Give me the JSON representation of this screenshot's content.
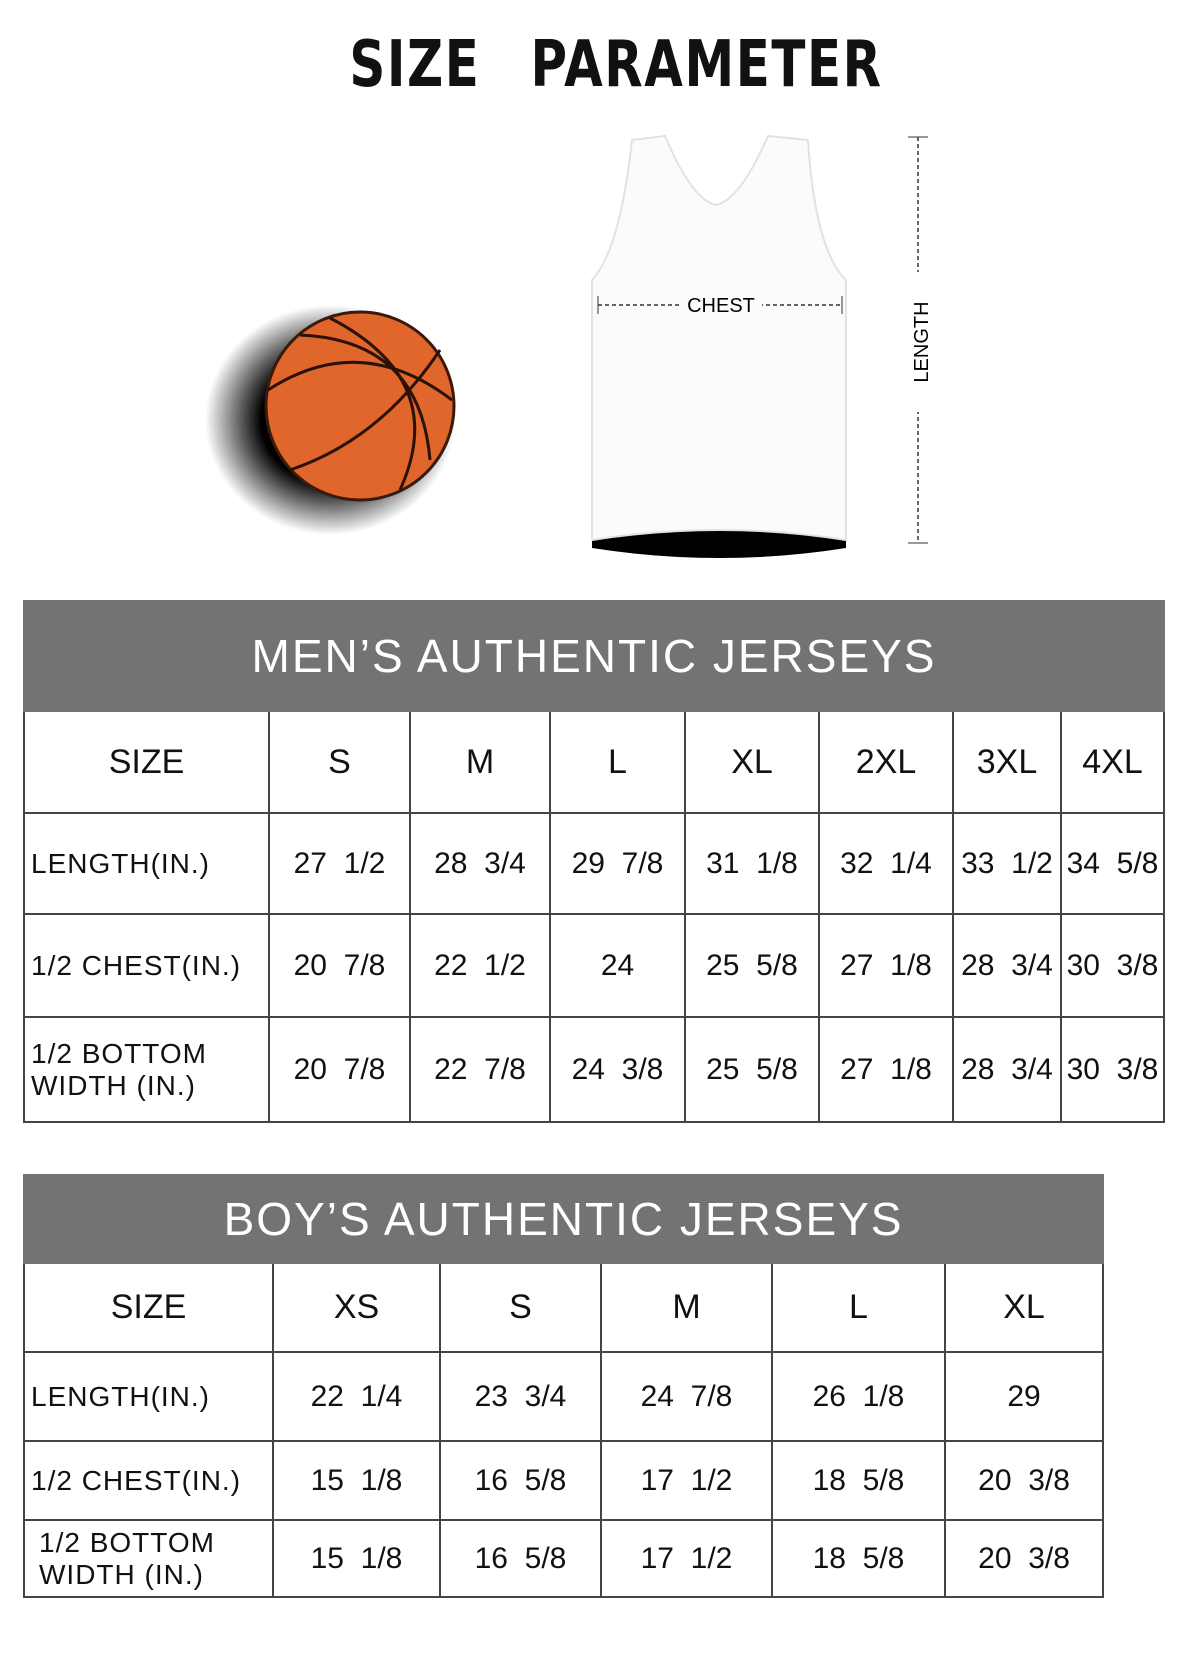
{
  "title": "SIZE PARAMETER",
  "diagram": {
    "chest_label": "CHEST",
    "length_label": "LENGTH",
    "ball_color": "#e0662b"
  },
  "men": {
    "heading": "MEN’S AUTHENTIC JERSEYS",
    "size_label": "SIZE",
    "sizes": [
      "S",
      "M",
      "L",
      "XL",
      "2XL",
      "3XL",
      "4XL"
    ],
    "rows": [
      {
        "label": "LENGTH(IN.)",
        "values": [
          "27  1/2",
          "28  3/4",
          "29  7/8",
          "31  1/8",
          "32  1/4",
          "33  1/2",
          "34  5/8"
        ]
      },
      {
        "label": "1/2 CHEST(IN.)",
        "values": [
          "20  7/8",
          "22  1/2",
          "24",
          "25  5/8",
          "27  1/8",
          "28  3/4",
          "30  3/8"
        ]
      },
      {
        "label": "1/2 BOTTOM WIDTH  (IN.)",
        "values": [
          "20  7/8",
          "22  7/8",
          "24  3/8",
          "25  5/8",
          "27  1/8",
          "28  3/4",
          "30  3/8"
        ]
      }
    ]
  },
  "boys": {
    "heading": "BOY’S AUTHENTIC JERSEYS",
    "size_label": "SIZE",
    "sizes": [
      "XS",
      "S",
      "M",
      "L",
      "XL"
    ],
    "rows": [
      {
        "label": "LENGTH(IN.)",
        "values": [
          "22  1/4",
          "23  3/4",
          "24  7/8",
          "26  1/8",
          "29"
        ]
      },
      {
        "label": "1/2 CHEST(IN.)",
        "values": [
          "15  1/8",
          "16  5/8",
          "17  1/2",
          "18  5/8",
          "20  3/8"
        ]
      },
      {
        "label": "1/2 BOTTOM WIDTH  (IN.)",
        "values": [
          "15  1/8",
          "16  5/8",
          "17  1/2",
          "18  5/8",
          "20  3/8"
        ]
      }
    ]
  },
  "header_color": "#737373"
}
